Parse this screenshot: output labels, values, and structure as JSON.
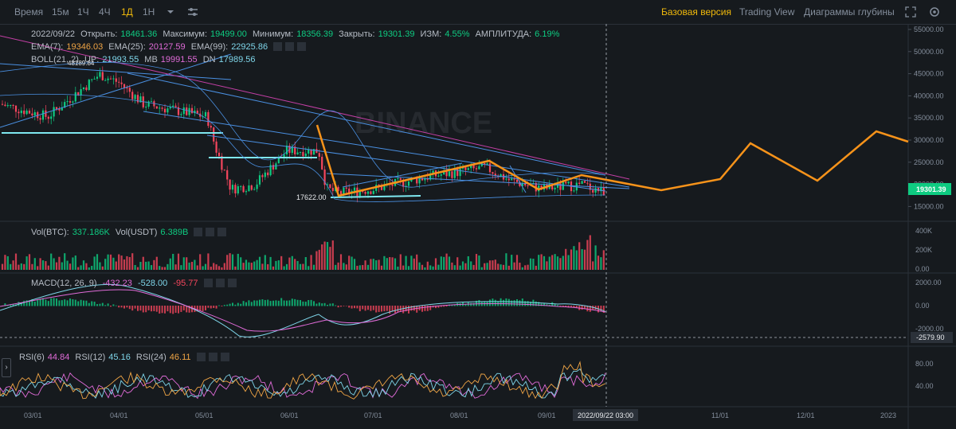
{
  "toolbar": {
    "left_items": [
      "Время",
      "15м",
      "1Ч",
      "4Ч",
      "1Д",
      "1Н"
    ],
    "active": "1Д",
    "right_items": [
      "Базовая версия",
      "Trading View",
      "Диаграммы глубины"
    ],
    "right_active": "Базовая версия"
  },
  "ohlc": {
    "date": "2022/09/22",
    "open_label": "Открыть:",
    "open": "18461.36",
    "high_label": "Максимум:",
    "high": "19499.00",
    "low_label": "Минимум:",
    "low": "18356.39",
    "close_label": "Закрыть:",
    "close": "19301.39",
    "change_label": "ИЗМ:",
    "change": "4.55%",
    "amp_label": "АМПЛИТУДА:",
    "amp": "6.19%"
  },
  "ema": {
    "ema7_label": "EMA(7):",
    "ema7": "19346.03",
    "ema25_label": "EMA(25):",
    "ema25": "20127.59",
    "ema99_label": "EMA(99):",
    "ema99": "22925.86"
  },
  "boll": {
    "label": "BOLL(21, 2)",
    "up_label": "UP:",
    "up": "21993.55",
    "mb_label": "MB",
    "mb": "19991.55",
    "dn_label": "DN",
    "dn": "17989.56"
  },
  "vol": {
    "btc_label": "Vol(BTC):",
    "btc": "337.186K",
    "usdt_label": "Vol(USDT)",
    "usdt": "6.389B"
  },
  "macd": {
    "label": "MACD(12, 26, 9)",
    "v1": "-432.23",
    "v2": "-528.00",
    "v3": "-95.77"
  },
  "rsi": {
    "r6_label": "RSI(6)",
    "r6": "44.84",
    "r12_label": "RSI(12)",
    "r12": "45.16",
    "r24_label": "RSI(24)",
    "r24": "46.11"
  },
  "price_axis": [
    "55000.00",
    "50000.00",
    "45000.00",
    "40000.00",
    "35000.00",
    "30000.00",
    "25000.00",
    "20000.00",
    "15000.00"
  ],
  "current_price": "19301.39",
  "low_marker": "17622.00",
  "hl_marker": "48189.84",
  "vol_axis": [
    "400K",
    "200K",
    "0.00"
  ],
  "macd_axis": [
    "2000.00",
    "0.00",
    "-2000.00"
  ],
  "macd_tag": "-2579.90",
  "rsi_axis": [
    "80.00",
    "40.00"
  ],
  "time_axis": [
    "03/01",
    "04/01",
    "05/01",
    "06/01",
    "07/01",
    "08/01",
    "09/01",
    "11/01",
    "12/01",
    "2023"
  ],
  "crosshair_time": "2022/09/22 03:00",
  "watermark": "BINANCE",
  "colors": {
    "up": "#0ecb81",
    "down": "#f6465d",
    "accent": "#f0b90b",
    "projection": "#f7931a",
    "trend": "#4a90e2",
    "ema99": "#c33fa5"
  },
  "chart_data": {
    "type": "candlestick",
    "x_range": [
      "2022/02/10",
      "2023/01/10"
    ],
    "y_range": [
      12000,
      57000
    ],
    "projection_points": [
      {
        "x": "2022/06/18",
        "y": 33500
      },
      {
        "x": "2022/06/24",
        "y": 17800
      },
      {
        "x": "2022/08/15",
        "y": 26000
      },
      {
        "x": "2022/09/07",
        "y": 19500
      },
      {
        "x": "2022/09/22",
        "y": 22000
      },
      {
        "x": "2022/10/20",
        "y": 19300
      },
      {
        "x": "2022/11/20",
        "y": 21500
      },
      {
        "x": "2022/12/10",
        "y": 30000
      },
      {
        "x": "2022/12/20",
        "y": 21000
      },
      {
        "x": "2022/12/30",
        "y": 32500
      },
      {
        "x": "2023/01/10",
        "y": 30000
      }
    ]
  }
}
